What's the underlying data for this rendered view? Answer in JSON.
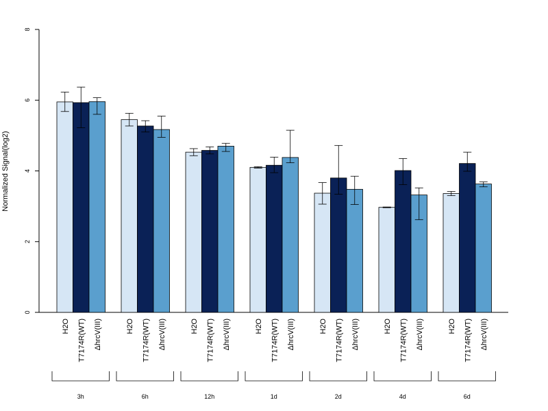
{
  "chart_data": {
    "type": "bar",
    "ylabel": "Normalized Signal(log2)",
    "xlabel": "",
    "ylim": [
      0,
      8
    ],
    "yticks": [
      "0",
      "2",
      "4",
      "6",
      "8"
    ],
    "grid": false,
    "legend": "none",
    "groups": [
      "3h",
      "6h",
      "12h",
      "1d",
      "2d",
      "4d",
      "6d"
    ],
    "bar_labels": [
      "H2O",
      "T7174R(WT)",
      "ΔhrcV(III)"
    ],
    "series": [
      {
        "name": "H2O",
        "color": "#d6e6f5",
        "values": [
          5.95,
          5.45,
          4.53,
          4.1,
          3.37,
          2.97,
          3.36
        ],
        "err_low": [
          5.68,
          5.27,
          4.43,
          4.08,
          3.06,
          2.96,
          3.3
        ],
        "err_high": [
          6.23,
          5.63,
          4.63,
          4.12,
          3.67,
          2.98,
          3.42
        ]
      },
      {
        "name": "T7174R(WT)",
        "color": "#0a2156",
        "values": [
          5.93,
          5.27,
          4.58,
          4.16,
          3.8,
          4.01,
          4.21
        ],
        "err_low": [
          5.22,
          5.1,
          4.48,
          3.95,
          3.34,
          3.61,
          3.99
        ],
        "err_high": [
          6.37,
          5.42,
          4.68,
          4.39,
          4.72,
          4.35,
          4.53
        ]
      },
      {
        "name": "ΔhrcV(III)",
        "color": "#5a9fce",
        "values": [
          5.96,
          5.17,
          4.7,
          4.38,
          3.48,
          3.32,
          3.63
        ],
        "err_low": [
          5.6,
          4.95,
          4.55,
          4.23,
          3.05,
          2.62,
          3.55
        ],
        "err_high": [
          6.07,
          5.55,
          4.78,
          5.15,
          3.85,
          3.52,
          3.69
        ]
      }
    ]
  }
}
